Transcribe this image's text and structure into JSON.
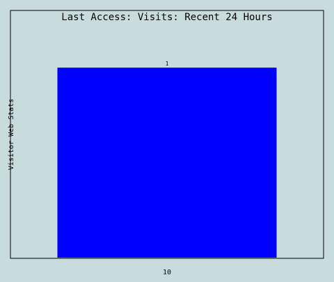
{
  "chart_data": {
    "type": "bar",
    "title": "Last Access: Visits: Recent 24 Hours",
    "ylabel": "Visitor Web Stats",
    "xlabel": "",
    "categories": [
      "10"
    ],
    "values": [
      1
    ],
    "value_labels": [
      "1"
    ],
    "ylim": [
      0,
      1.3
    ],
    "grid": false,
    "legend": "none"
  },
  "colors": {
    "background": "#c8dcde",
    "bar": "#0000ff",
    "frame": "#000000",
    "text": "#000000"
  }
}
